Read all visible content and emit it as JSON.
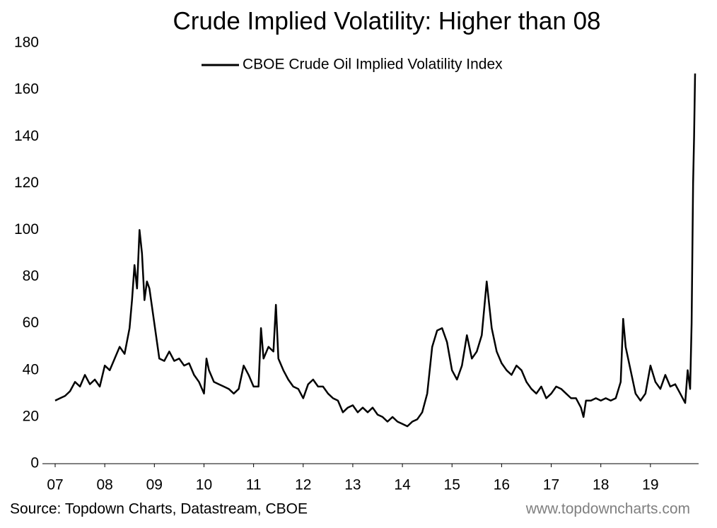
{
  "chart_data": {
    "type": "line",
    "title": "Crude Implied Volatility: Higher than 08",
    "source": "Source: Topdown Charts, Datastream, CBOE",
    "website": "www.topdowncharts.com",
    "legend": "top",
    "grid": false,
    "x": [
      7.0,
      7.1,
      7.2,
      7.3,
      7.4,
      7.5,
      7.6,
      7.7,
      7.8,
      7.9,
      8.0,
      8.1,
      8.2,
      8.3,
      8.4,
      8.5,
      8.55,
      8.6,
      8.65,
      8.7,
      8.75,
      8.8,
      8.85,
      8.9,
      9.0,
      9.1,
      9.2,
      9.3,
      9.4,
      9.5,
      9.6,
      9.7,
      9.8,
      9.9,
      10.0,
      10.05,
      10.1,
      10.2,
      10.3,
      10.4,
      10.5,
      10.6,
      10.7,
      10.8,
      10.9,
      11.0,
      11.1,
      11.15,
      11.2,
      11.3,
      11.4,
      11.45,
      11.5,
      11.6,
      11.7,
      11.8,
      11.9,
      12.0,
      12.1,
      12.2,
      12.3,
      12.4,
      12.5,
      12.6,
      12.7,
      12.8,
      12.9,
      13.0,
      13.1,
      13.2,
      13.3,
      13.4,
      13.5,
      13.6,
      13.7,
      13.8,
      13.9,
      14.0,
      14.1,
      14.2,
      14.3,
      14.4,
      14.5,
      14.6,
      14.7,
      14.8,
      14.9,
      15.0,
      15.1,
      15.2,
      15.3,
      15.4,
      15.5,
      15.6,
      15.7,
      15.8,
      15.9,
      16.0,
      16.1,
      16.2,
      16.3,
      16.4,
      16.5,
      16.6,
      16.7,
      16.8,
      16.9,
      17.0,
      17.1,
      17.2,
      17.3,
      17.4,
      17.5,
      17.6,
      17.65,
      17.7,
      17.8,
      17.9,
      18.0,
      18.1,
      18.2,
      18.3,
      18.4,
      18.45,
      18.5,
      18.6,
      18.7,
      18.8,
      18.9,
      19.0,
      19.1,
      19.2,
      19.3,
      19.4,
      19.5,
      19.6,
      19.7,
      19.75,
      19.8,
      19.83,
      19.86,
      19.88,
      19.9
    ],
    "series": [
      {
        "name": "CBOE Crude Oil Implied Volatility Index",
        "color": "#000000",
        "values": [
          27,
          28,
          29,
          31,
          35,
          33,
          38,
          34,
          36,
          33,
          42,
          40,
          45,
          50,
          47,
          58,
          70,
          85,
          75,
          100,
          90,
          70,
          78,
          75,
          60,
          45,
          44,
          48,
          44,
          45,
          42,
          43,
          38,
          35,
          30,
          45,
          40,
          35,
          34,
          33,
          32,
          30,
          32,
          42,
          38,
          33,
          33,
          58,
          45,
          50,
          48,
          68,
          45,
          40,
          36,
          33,
          32,
          28,
          34,
          36,
          33,
          33,
          30,
          28,
          27,
          22,
          24,
          25,
          22,
          24,
          22,
          24,
          21,
          20,
          18,
          20,
          18,
          17,
          16,
          18,
          19,
          22,
          30,
          50,
          57,
          58,
          52,
          40,
          36,
          42,
          55,
          45,
          48,
          55,
          78,
          58,
          48,
          43,
          40,
          38,
          42,
          40,
          35,
          32,
          30,
          33,
          28,
          30,
          33,
          32,
          30,
          28,
          28,
          24,
          20,
          27,
          27,
          28,
          27,
          28,
          27,
          28,
          35,
          62,
          50,
          40,
          30,
          27,
          30,
          42,
          35,
          32,
          38,
          33,
          34,
          30,
          26,
          40,
          32,
          60,
          120,
          140,
          167
        ]
      }
    ],
    "xlim": [
      7,
      19.9
    ],
    "xticks": [
      {
        "value": 7,
        "label": "07"
      },
      {
        "value": 8,
        "label": "08"
      },
      {
        "value": 9,
        "label": "09"
      },
      10,
      11,
      12,
      13,
      14,
      15,
      16,
      17,
      18,
      19
    ],
    "ylim": [
      0,
      180
    ],
    "yticks": [
      0,
      20,
      40,
      60,
      80,
      100,
      120,
      140,
      160,
      180
    ]
  }
}
